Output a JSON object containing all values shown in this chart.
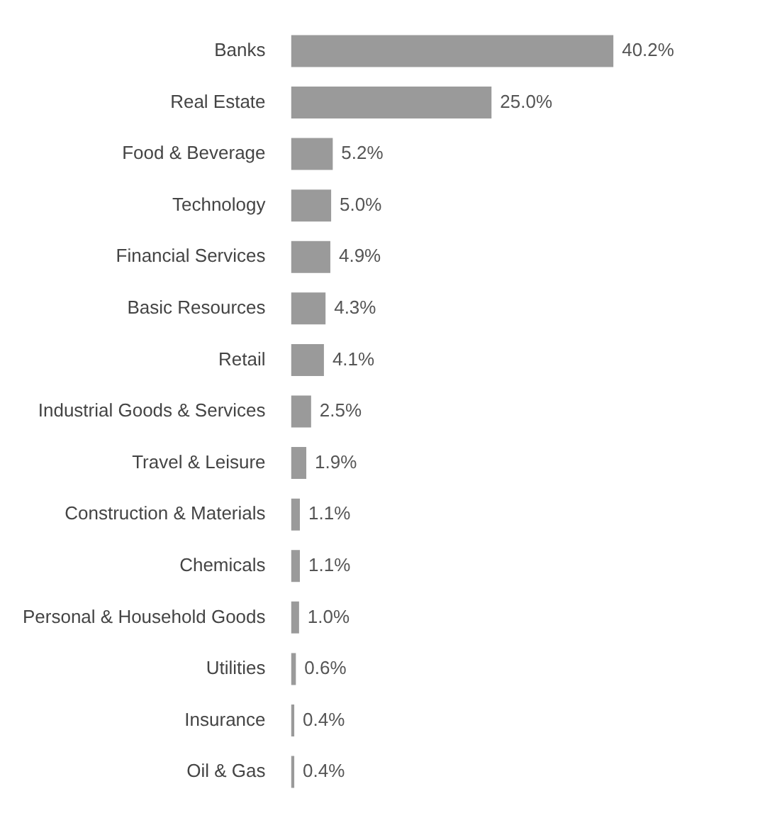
{
  "chart_data": {
    "type": "bar",
    "orientation": "horizontal",
    "categories": [
      "Banks",
      "Real Estate",
      "Food & Beverage",
      "Technology",
      "Financial Services",
      "Basic Resources",
      "Retail",
      "Industrial Goods & Services",
      "Travel & Leisure",
      "Construction & Materials",
      "Chemicals",
      "Personal & Household Goods",
      "Utilities",
      "Insurance",
      "Oil & Gas"
    ],
    "values": [
      40.2,
      25.0,
      5.2,
      5.0,
      4.9,
      4.3,
      4.1,
      2.5,
      1.9,
      1.1,
      1.1,
      1.0,
      0.6,
      0.4,
      0.4
    ],
    "value_labels": [
      "40.2%",
      "25.0%",
      "5.2%",
      "5.0%",
      "4.9%",
      "4.3%",
      "4.1%",
      "2.5%",
      "1.9%",
      "1.1%",
      "1.1%",
      "1.0%",
      "0.6%",
      "0.4%",
      "0.4%"
    ],
    "color": "#9a9a9a",
    "legend": false,
    "tick_labels": "y"
  }
}
